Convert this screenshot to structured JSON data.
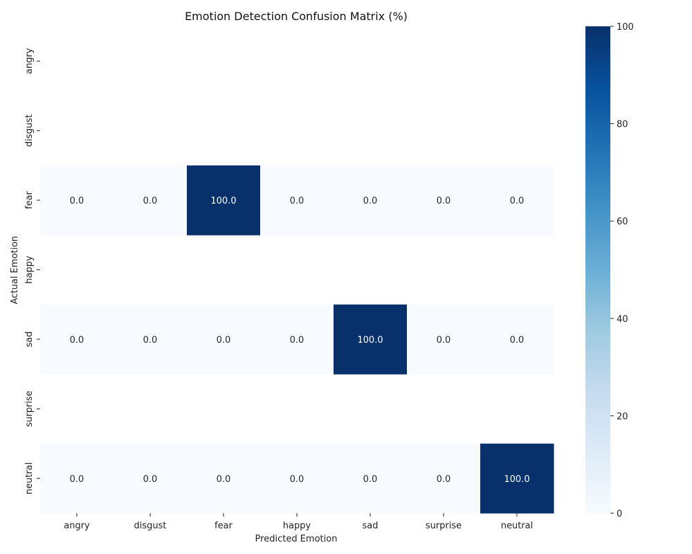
{
  "chart_data": {
    "type": "heatmap",
    "title": "Emotion Detection Confusion Matrix (%)",
    "xlabel": "Predicted Emotion",
    "ylabel": "Actual Emotion",
    "x_categories": [
      "angry",
      "disgust",
      "fear",
      "happy",
      "sad",
      "surprise",
      "neutral"
    ],
    "y_categories": [
      "angry",
      "disgust",
      "fear",
      "happy",
      "sad",
      "surprise",
      "neutral"
    ],
    "values": [
      [
        null,
        null,
        null,
        null,
        null,
        null,
        null
      ],
      [
        null,
        null,
        null,
        null,
        null,
        null,
        null
      ],
      [
        0.0,
        0.0,
        100.0,
        0.0,
        0.0,
        0.0,
        0.0
      ],
      [
        null,
        null,
        null,
        null,
        null,
        null,
        null
      ],
      [
        0.0,
        0.0,
        0.0,
        0.0,
        100.0,
        0.0,
        0.0
      ],
      [
        null,
        null,
        null,
        null,
        null,
        null,
        null
      ],
      [
        0.0,
        0.0,
        0.0,
        0.0,
        0.0,
        0.0,
        100.0
      ]
    ],
    "colormap": "Blues",
    "color_low": "#f7fbff",
    "color_high": "#08306b",
    "vmin": 0,
    "vmax": 100,
    "colorbar_ticks": [
      0,
      20,
      40,
      60,
      80,
      100
    ],
    "annotation_format": "0.1f"
  }
}
